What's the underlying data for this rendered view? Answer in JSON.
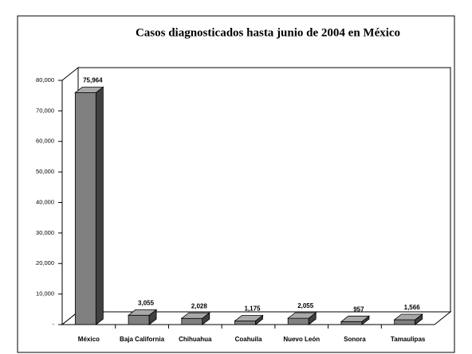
{
  "chart_data": {
    "type": "bar3d",
    "title": "Casos diagnosticados hasta junio de 2004 en México",
    "categories": [
      "México",
      "Baja California",
      "Chihuahua",
      "Coahuila",
      "Nuevo León",
      "Sonora",
      "Tamaulipas"
    ],
    "values": [
      75964,
      3055,
      2028,
      1175,
      2055,
      957,
      1566
    ],
    "value_labels": [
      "75,964",
      "3,055",
      "2,028",
      "1,175",
      "2,055",
      "957",
      "1,566"
    ],
    "color": "#808080",
    "ylim": [
      0,
      80000
    ],
    "yticks": [
      {
        "value": 0,
        "label": "-"
      },
      {
        "value": 10000,
        "label": "10,000"
      },
      {
        "value": 20000,
        "label": "20,000"
      },
      {
        "value": 30000,
        "label": "30,000"
      },
      {
        "value": 40000,
        "label": "40,000"
      },
      {
        "value": 50000,
        "label": "50,000"
      },
      {
        "value": 60000,
        "label": "60,000"
      },
      {
        "value": 70000,
        "label": "70,000"
      },
      {
        "value": 80000,
        "label": "80,000"
      }
    ]
  }
}
